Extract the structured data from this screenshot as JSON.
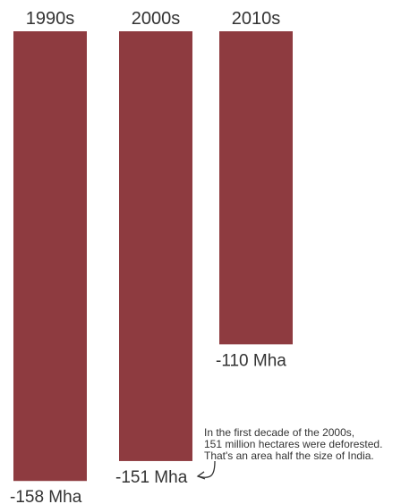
{
  "chart_data": {
    "type": "bar",
    "orientation": "vertical-downward",
    "categories": [
      "1990s",
      "2000s",
      "2010s"
    ],
    "values": [
      -158,
      -151,
      -110
    ],
    "value_labels": [
      "-158 Mha",
      "-151 Mha",
      "-110 Mha"
    ],
    "unit": "Mha",
    "bar_color": "#8e3b40",
    "title": "",
    "xlabel": "",
    "ylabel": "",
    "annotation": {
      "target_category": "2000s",
      "lines": [
        "In the first decade of the 2000s,",
        "151 million hectares were deforested.",
        "That's an area half the size of India."
      ]
    },
    "arrow_color": "#333333"
  }
}
